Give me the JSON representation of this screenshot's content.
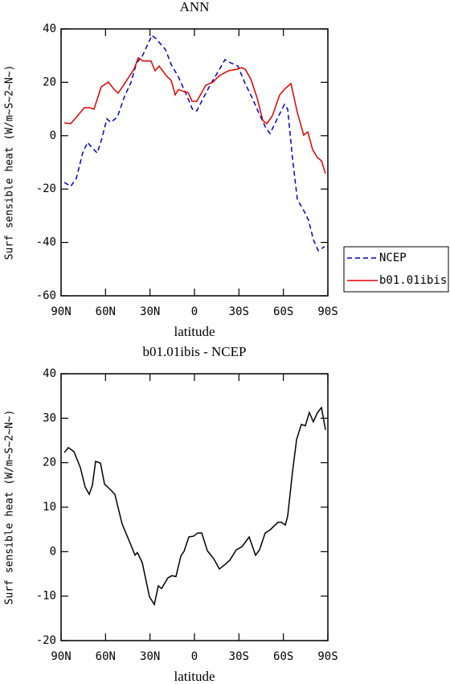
{
  "chart_data": [
    {
      "type": "line",
      "title": "ANN",
      "xlabel": "latitude",
      "ylabel": "Surf sensible heat (W/m~S~2~N~)",
      "xlim": [
        90,
        -90
      ],
      "xticks": [
        {
          "value": 90,
          "label": "90N"
        },
        {
          "value": 60,
          "label": "60N"
        },
        {
          "value": 30,
          "label": "30N"
        },
        0,
        {
          "value": -30,
          "label": "30S"
        },
        {
          "value": -60,
          "label": "60S"
        },
        {
          "value": -90,
          "label": "90S"
        }
      ],
      "ylim": [
        -60,
        40
      ],
      "yticks": [
        -60,
        -40,
        -20,
        0,
        20,
        40
      ],
      "legend": "right",
      "series": [
        {
          "name": "NCEP",
          "color": "#0000cc",
          "dash": "dashed",
          "x": [
            87.8,
            83.5,
            79.7,
            75.4,
            72.1,
            69.9,
            65.6,
            62.9,
            59.1,
            56.4,
            52,
            47.2,
            42.8,
            39,
            35.2,
            28.7,
            26,
            19.5,
            15.7,
            10.8,
            5.4,
            1.1,
            -1.6,
            -5.4,
            -10.8,
            -16.3,
            -20.6,
            -24.4,
            -29.3,
            -34.2,
            -38.5,
            -42.8,
            -48.3,
            -51,
            -55.8,
            -60.7,
            -62.9,
            -66.1,
            -69.4,
            -73.7,
            -77,
            -80.2,
            -83.5,
            -87.8
          ],
          "values": [
            -17.5,
            -19,
            -16,
            -6.4,
            -2.5,
            -4,
            -6.5,
            -1.9,
            6.3,
            5,
            7,
            14.7,
            20,
            27.4,
            29.8,
            37.6,
            36.4,
            32.2,
            26.7,
            22,
            15.3,
            9.6,
            9.3,
            13.5,
            19.2,
            24.3,
            28.5,
            27.3,
            26.1,
            19.5,
            14.7,
            9.3,
            2.7,
            0.8,
            6.3,
            11.7,
            9.9,
            -8.2,
            -23.9,
            -28,
            -31.7,
            -38.9,
            -43.1,
            -41.6
          ]
        },
        {
          "name": "b01.01ibis",
          "color": "#e00000",
          "dash": "solid",
          "x": [
            87.8,
            83.5,
            79.7,
            74.3,
            70.5,
            67.8,
            62.9,
            58,
            54.8,
            51.5,
            46.6,
            40.7,
            37.9,
            34.7,
            29.3,
            26.6,
            23.9,
            19,
            15.7,
            13,
            10.8,
            7,
            4.3,
            1.6,
            -1.6,
            -7.6,
            -12.5,
            -16.8,
            -22.8,
            -28.7,
            -31.5,
            -34.2,
            -38,
            -42.3,
            -46.1,
            -48.8,
            -52.6,
            -57.5,
            -61.3,
            -65.1,
            -69.4,
            -73.7,
            -76.5,
            -79.7,
            -82.9,
            -85.7,
            -88.4
          ],
          "values": [
            4.8,
            4.5,
            6.9,
            10.5,
            10.5,
            9.9,
            18.3,
            20.1,
            17.7,
            15.9,
            20,
            25,
            29.2,
            28,
            28,
            24.3,
            26.1,
            22.5,
            20.7,
            15.3,
            17.3,
            16.5,
            16.2,
            12.9,
            12.9,
            18.9,
            20.1,
            22.5,
            24.3,
            24.9,
            25.5,
            24.9,
            21.3,
            14.1,
            5.7,
            4.5,
            7.5,
            15.3,
            17.7,
            19.5,
            8.7,
            0.2,
            1.4,
            -5.2,
            -8.2,
            -9.4,
            -14.2
          ]
        }
      ]
    },
    {
      "type": "line",
      "title": "b01.01ibis - NCEP",
      "xlabel": "latitude",
      "ylabel": "Surf sensible heat (W/m~S~2~N~)",
      "xlim": [
        90,
        -90
      ],
      "xticks": [
        {
          "value": 90,
          "label": "90N"
        },
        {
          "value": 60,
          "label": "60N"
        },
        {
          "value": 30,
          "label": "30N"
        },
        0,
        {
          "value": -30,
          "label": "30S"
        },
        {
          "value": -60,
          "label": "60S"
        },
        {
          "value": -90,
          "label": "90S"
        }
      ],
      "ylim": [
        -20,
        40
      ],
      "yticks": [
        -20,
        -10,
        0,
        10,
        20,
        30,
        40
      ],
      "series": [
        {
          "color": "#000000",
          "dash": "solid",
          "x": [
            87.8,
            85.1,
            81.3,
            77,
            73.7,
            71,
            68.9,
            66.7,
            63.4,
            60.7,
            56.9,
            53.7,
            48.8,
            44.5,
            40.1,
            38.5,
            35.2,
            30.4,
            27.1,
            24.4,
            22.2,
            17.9,
            15.2,
            12.5,
            9.2,
            7,
            3.8,
            0.5,
            -2.2,
            -4.9,
            -8.7,
            -13,
            -16.8,
            -20.6,
            -23.9,
            -28.2,
            -32,
            -36.9,
            -41.2,
            -43.9,
            -47.7,
            -51,
            -56.4,
            -58.6,
            -61.3,
            -62.9,
            -66.1,
            -68.9,
            -72.1,
            -74.8,
            -77.5,
            -80.2,
            -82.9,
            -85.7,
            -88.4
          ],
          "values": [
            22.3,
            23.4,
            22.5,
            18.9,
            14.5,
            12.9,
            14.9,
            20.3,
            19.9,
            15.2,
            14,
            12.9,
            6.2,
            2.8,
            -0.8,
            -0.2,
            -2.5,
            -10.1,
            -11.9,
            -7.7,
            -8.3,
            -5.9,
            -5.4,
            -5.6,
            -1,
            0.1,
            3.3,
            3.5,
            4.2,
            4.2,
            0.2,
            -1.6,
            -3.9,
            -2.9,
            -1.9,
            0.4,
            1.1,
            3.3,
            -0.8,
            0.4,
            4.2,
            4.9,
            6.6,
            6.6,
            6,
            8,
            17.8,
            25.2,
            28.6,
            28.3,
            31.3,
            29.2,
            31.2,
            32.4,
            27.4
          ]
        }
      ]
    }
  ]
}
